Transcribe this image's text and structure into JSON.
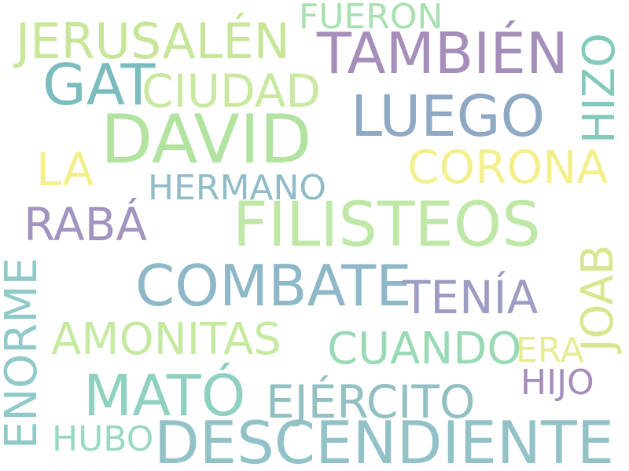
{
  "words": [
    {
      "text": "DAVID",
      "color": "#b3e3a0"
    },
    {
      "text": "FILISTEOS",
      "color": "#bfe8a8"
    },
    {
      "text": "DESCENDIENTE",
      "color": "#92c2c7"
    },
    {
      "text": "COMBATE",
      "color": "#8eb8c8"
    },
    {
      "text": "TAMBIÉN",
      "color": "#a58eba"
    },
    {
      "text": "LUEGO",
      "color": "#8fa9c4"
    },
    {
      "text": "GAT",
      "color": "#7bbcbe"
    },
    {
      "text": "MATÓ",
      "color": "#8fd0c1"
    },
    {
      "text": "JERUSALÉN",
      "color": "#c7e69a"
    },
    {
      "text": "CIUDAD",
      "color": "#c9e8a0"
    },
    {
      "text": "CORONA",
      "color": "#f4ef8d"
    },
    {
      "text": "RABÁ",
      "color": "#a294bf"
    },
    {
      "text": "AMONITAS",
      "color": "#c6e9a2"
    },
    {
      "text": "CUANDO",
      "color": "#9ad9b6"
    },
    {
      "text": "TENÍA",
      "color": "#9d9cc2"
    },
    {
      "text": "EJÉRCITO",
      "color": "#92c0c2"
    },
    {
      "text": "ENORME",
      "color": "#8fc9c8"
    },
    {
      "text": "JOAB",
      "color": "#d9e68f"
    },
    {
      "text": "HIZO",
      "color": "#84cabc"
    },
    {
      "text": "HERMANO",
      "color": "#90bbc7"
    },
    {
      "text": "LA",
      "color": "#f3ef8a"
    },
    {
      "text": "FUERON",
      "color": "#a8e0b0"
    },
    {
      "text": "HIJO",
      "color": "#a58cba"
    },
    {
      "text": "ERA",
      "color": "#e6ec96"
    },
    {
      "text": "HUBO",
      "color": "#9ad8c0"
    }
  ]
}
